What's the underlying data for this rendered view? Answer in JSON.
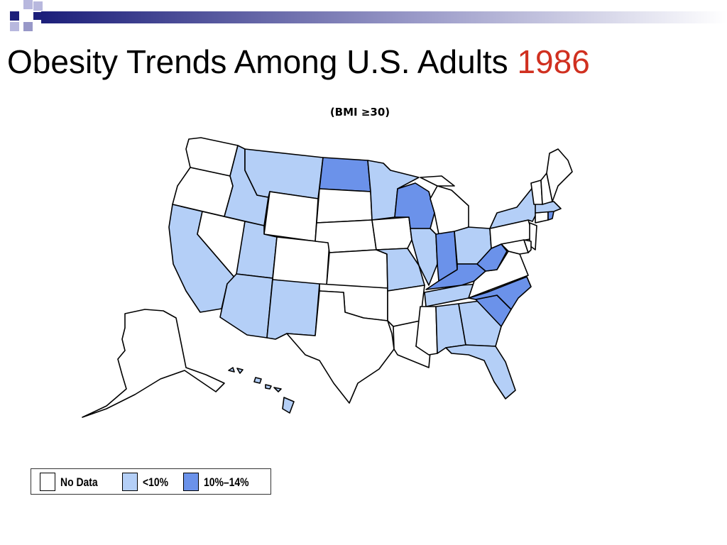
{
  "slide": {
    "title_main": "Obesity Trends Among U.S. Adults",
    "title_year": "1986",
    "year_color": "#d03020",
    "subtitle": "(BMI ≥30)"
  },
  "legend": {
    "items": [
      {
        "label": "No Data",
        "color": "#ffffff"
      },
      {
        "label": "<10%",
        "color": "#b4cff7"
      },
      {
        "label": "10%–14%",
        "color": "#6b92ea"
      }
    ]
  },
  "map": {
    "categories": {
      "no_data": "#ffffff",
      "lt10": "#b4cff7",
      "10to14": "#6b92ea"
    },
    "states": {
      "WA": "no_data",
      "OR": "no_data",
      "CA": "lt10",
      "NV": "no_data",
      "ID": "lt10",
      "MT": "lt10",
      "WY": "no_data",
      "UT": "lt10",
      "AZ": "lt10",
      "CO": "no_data",
      "NM": "lt10",
      "ND": "10to14",
      "SD": "no_data",
      "NE": "no_data",
      "KS": "no_data",
      "OK": "no_data",
      "TX": "no_data",
      "MN": "lt10",
      "IA": "no_data",
      "MO": "lt10",
      "AR": "no_data",
      "LA": "no_data",
      "WI": "10to14",
      "IL": "lt10",
      "MI": "no_data",
      "IN": "10to14",
      "OH": "lt10",
      "KY": "10to14",
      "TN": "lt10",
      "MS": "no_data",
      "AL": "lt10",
      "GA": "lt10",
      "FL": "lt10",
      "SC": "10to14",
      "NC": "10to14",
      "VA": "no_data",
      "WV": "10to14",
      "PA": "no_data",
      "NY": "lt10",
      "NJ": "no_data",
      "DE": "no_data",
      "MD": "no_data",
      "CT": "no_data",
      "RI": "10to14",
      "MA": "lt10",
      "VT": "no_data",
      "NH": "no_data",
      "ME": "no_data",
      "AK": "no_data",
      "HI": "lt10"
    }
  }
}
